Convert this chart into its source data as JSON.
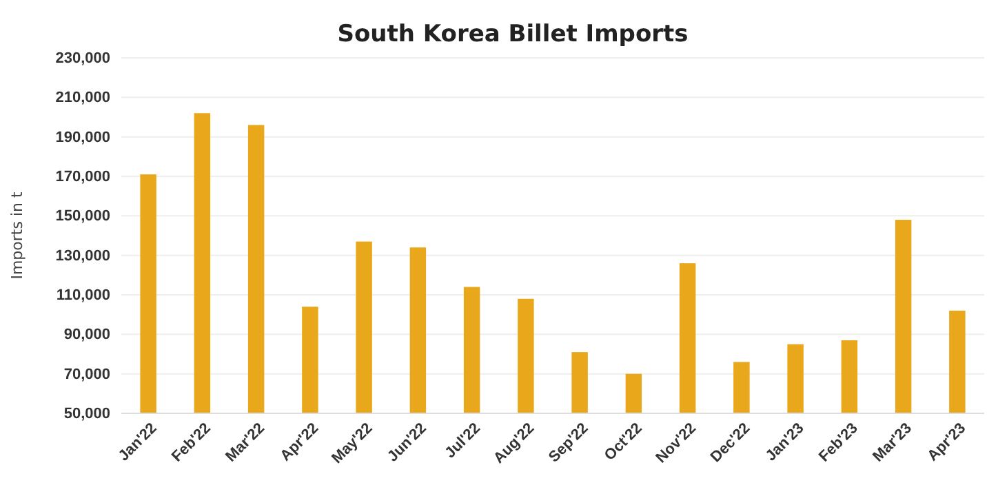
{
  "chart_data": {
    "type": "bar",
    "title": "South Korea Billet Imports",
    "ylabel": "Imports in t",
    "categories": [
      "Jan'22",
      "Feb'22",
      "Mar'22",
      "Apr'22",
      "May'22",
      "Jun'22",
      "Jul'22",
      "Aug'22",
      "Sep'22",
      "Oct'22",
      "Nov'22",
      "Dec'22",
      "Jan'23",
      "Feb'23",
      "Mar'23",
      "Apr'23"
    ],
    "values": [
      171000,
      202000,
      196000,
      104000,
      137000,
      134000,
      114000,
      108000,
      81000,
      70000,
      126000,
      76000,
      85000,
      87000,
      148000,
      102000
    ],
    "color": "#e9a81c",
    "ylim": [
      50000,
      230000
    ],
    "yticks": [
      {
        "value": 50000,
        "label": "50,000"
      },
      {
        "value": 70000,
        "label": "70,000"
      },
      {
        "value": 90000,
        "label": "90,000"
      },
      {
        "value": 110000,
        "label": "110,000"
      },
      {
        "value": 130000,
        "label": "130,000"
      },
      {
        "value": 150000,
        "label": "150,000"
      },
      {
        "value": 170000,
        "label": "170,000"
      },
      {
        "value": 190000,
        "label": "190,000"
      },
      {
        "value": 210000,
        "label": "210,000"
      },
      {
        "value": 230000,
        "label": "230,000"
      }
    ],
    "grid": "y"
  }
}
